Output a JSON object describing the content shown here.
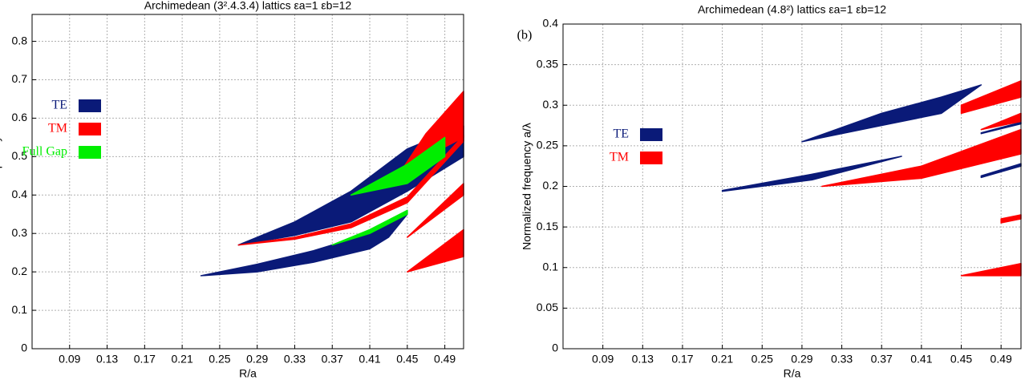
{
  "chart_data": [
    {
      "type": "range-area",
      "title": "Archimedean (3².4.3.4) lattics εa=1 εb=12",
      "x_label": "R/a",
      "y_label": "Normalized frequency a/λ",
      "xlim": [
        0.05,
        0.51
      ],
      "xticks": [
        0.09,
        0.13,
        0.17,
        0.21,
        0.25,
        0.29,
        0.33,
        0.37,
        0.41,
        0.45,
        0.49
      ],
      "ylim": [
        0,
        0.87
      ],
      "yticks": [
        0,
        0.1,
        0.2,
        0.3,
        0.4,
        0.5,
        0.6,
        0.7,
        0.8
      ],
      "grid": true,
      "series": [
        {
          "name": "TE",
          "color": "#0a1a78",
          "regions": [
            {
              "x": [
                0.23,
                0.29,
                0.35,
                0.41,
                0.43,
                0.45
              ],
              "lower": [
                0.19,
                0.2,
                0.225,
                0.26,
                0.29,
                0.35
              ],
              "upper": [
                0.19,
                0.22,
                0.255,
                0.3,
                0.325,
                0.36
              ]
            },
            {
              "x": [
                0.27,
                0.33,
                0.39,
                0.45,
                0.51
              ],
              "lower": [
                0.27,
                0.295,
                0.33,
                0.41,
                0.5
              ],
              "upper": [
                0.27,
                0.33,
                0.41,
                0.52,
                0.58
              ]
            }
          ]
        },
        {
          "name": "TM",
          "color": "#ff0000",
          "regions": [
            {
              "x": [
                0.27,
                0.33,
                0.39,
                0.45,
                0.51
              ],
              "lower": [
                0.27,
                0.285,
                0.315,
                0.38,
                0.54
              ],
              "upper": [
                0.27,
                0.29,
                0.325,
                0.395,
                0.555
              ]
            },
            {
              "x": [
                0.44,
                0.47,
                0.51
              ],
              "lower": [
                0.45,
                0.5,
                0.55
              ],
              "upper": [
                0.45,
                0.56,
                0.67
              ]
            },
            {
              "x": [
                0.45,
                0.51
              ],
              "lower": [
                0.29,
                0.4
              ],
              "upper": [
                0.29,
                0.43
              ]
            },
            {
              "x": [
                0.45,
                0.51
              ],
              "lower": [
                0.2,
                0.24
              ],
              "upper": [
                0.2,
                0.31
              ]
            }
          ]
        },
        {
          "name": "Full Gap",
          "color": "#00ee00",
          "regions": [
            {
              "x": [
                0.39,
                0.45,
                0.49
              ],
              "lower": [
                0.4,
                0.43,
                0.5
              ],
              "upper": [
                0.4,
                0.48,
                0.55
              ]
            },
            {
              "x": [
                0.37,
                0.41,
                0.45
              ],
              "lower": [
                0.27,
                0.3,
                0.35
              ],
              "upper": [
                0.27,
                0.31,
                0.36
              ]
            }
          ]
        }
      ]
    },
    {
      "type": "range-area",
      "title": "Archimedean (4.8²) lattics εa=1 εb=12",
      "annotation": "(b)",
      "x_label": "R/a",
      "y_label": "Normalized frequency a/λ",
      "xlim": [
        0.05,
        0.51
      ],
      "xticks": [
        0.09,
        0.13,
        0.17,
        0.21,
        0.25,
        0.29,
        0.33,
        0.37,
        0.41,
        0.45,
        0.49
      ],
      "ylim": [
        0,
        0.4
      ],
      "yticks": [
        0,
        0.05,
        0.1,
        0.15,
        0.2,
        0.25,
        0.3,
        0.35,
        0.4
      ],
      "grid": true,
      "series": [
        {
          "name": "TE",
          "color": "#0a1a78",
          "regions": [
            {
              "x": [
                0.29,
                0.37,
                0.43,
                0.47
              ],
              "lower": [
                0.255,
                0.275,
                0.29,
                0.325
              ],
              "upper": [
                0.255,
                0.29,
                0.31,
                0.325
              ]
            },
            {
              "x": [
                0.21,
                0.3,
                0.39
              ],
              "lower": [
                0.194,
                0.208,
                0.237
              ],
              "upper": [
                0.195,
                0.215,
                0.237
              ]
            },
            {
              "x": [
                0.47,
                0.51
              ],
              "lower": [
                0.265,
                0.277
              ],
              "upper": [
                0.266,
                0.279
              ]
            },
            {
              "x": [
                0.47,
                0.51
              ],
              "lower": [
                0.211,
                0.225
              ],
              "upper": [
                0.213,
                0.228
              ]
            }
          ]
        },
        {
          "name": "TM",
          "color": "#ff0000",
          "regions": [
            {
              "x": [
                0.31,
                0.41,
                0.51
              ],
              "lower": [
                0.2,
                0.21,
                0.24
              ],
              "upper": [
                0.2,
                0.225,
                0.27
              ]
            },
            {
              "x": [
                0.45,
                0.51
              ],
              "lower": [
                0.29,
                0.31
              ],
              "upper": [
                0.3,
                0.33
              ]
            },
            {
              "x": [
                0.47,
                0.51
              ],
              "lower": [
                0.27,
                0.28
              ],
              "upper": [
                0.27,
                0.29
              ]
            },
            {
              "x": [
                0.49,
                0.51
              ],
              "lower": [
                0.155,
                0.16
              ],
              "upper": [
                0.16,
                0.165
              ]
            },
            {
              "x": [
                0.45,
                0.51
              ],
              "lower": [
                0.09,
                0.09
              ],
              "upper": [
                0.09,
                0.105
              ]
            }
          ]
        }
      ]
    }
  ]
}
